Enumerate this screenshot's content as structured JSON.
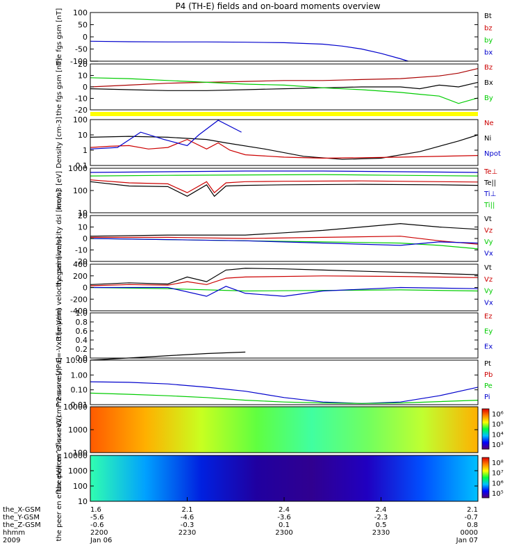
{
  "title": "P4 (TH-E) fields and on-board moments overview",
  "chart_data": [
    {
      "type": "line",
      "ylabel": "the fgs gsm [nT]",
      "ylim": [
        -100,
        100
      ],
      "yticks": [
        "100",
        "50",
        "0",
        "-50",
        "-100"
      ],
      "legend": [
        {
          "name": "Bt",
          "color": "#000000"
        },
        {
          "name": "bz",
          "color": "#cc0000"
        },
        {
          "name": "by",
          "color": "#00cc00"
        },
        {
          "name": "bx",
          "color": "#0000cc"
        }
      ],
      "series": [
        {
          "name": "bx",
          "color": "#0000cc",
          "x": [
            0,
            0.1,
            0.2,
            0.3,
            0.4,
            0.5,
            0.6,
            0.65,
            0.7,
            0.75,
            0.8,
            0.82
          ],
          "y": [
            -18,
            -20,
            -21,
            -21,
            -22,
            -24,
            -30,
            -38,
            -50,
            -68,
            -90,
            -100
          ]
        },
        {
          "name": "Bt",
          "color": "#000000",
          "x": [
            0,
            0.02
          ],
          "y": [
            -100,
            -100
          ]
        }
      ]
    },
    {
      "type": "line",
      "ylabel": "the fgs gsm [nT]",
      "ylim": [
        -25,
        25
      ],
      "yticks": [
        "20",
        "10",
        "0",
        "-10",
        "-20"
      ],
      "legend": [
        {
          "name": "Bz",
          "color": "#cc0000"
        },
        {
          "name": "Bx",
          "color": "#000000"
        },
        {
          "name": "By",
          "color": "#00cc00"
        }
      ],
      "series": [
        {
          "name": "Bz",
          "color": "#aa0000",
          "x": [
            0,
            0.1,
            0.2,
            0.3,
            0.4,
            0.5,
            0.6,
            0.7,
            0.8,
            0.9,
            0.95,
            1
          ],
          "y": [
            0,
            2,
            4,
            5,
            6,
            7,
            7,
            8,
            9,
            12,
            15,
            20
          ]
        },
        {
          "name": "Bx",
          "color": "#000000",
          "x": [
            0,
            0.1,
            0.2,
            0.3,
            0.4,
            0.5,
            0.6,
            0.7,
            0.8,
            0.85,
            0.9,
            0.95,
            1
          ],
          "y": [
            -2,
            -3,
            -4,
            -4,
            -3,
            -2,
            -1,
            0,
            0,
            -2,
            2,
            0,
            5
          ]
        },
        {
          "name": "By",
          "color": "#00cc00",
          "x": [
            0,
            0.1,
            0.2,
            0.3,
            0.4,
            0.5,
            0.6,
            0.7,
            0.8,
            0.85,
            0.9,
            0.95,
            1
          ],
          "y": [
            10,
            9,
            7,
            5,
            3,
            2,
            -1,
            -3,
            -6,
            -8,
            -10,
            -18,
            -12
          ]
        }
      ]
    },
    {
      "type": "line",
      "ylabel": "Density [cm-3]",
      "ylog": [
        0.1,
        100
      ],
      "yticks": [
        "100",
        "10",
        "1",
        "0.1"
      ],
      "legend": [
        {
          "name": "Ne",
          "color": "#cc0000"
        },
        {
          "name": "Ni",
          "color": "#000000"
        },
        {
          "name": "Npot",
          "color": "#0000cc"
        }
      ],
      "series": [
        {
          "name": "Ni",
          "color": "#000000",
          "x": [
            0,
            0.1,
            0.2,
            0.3,
            0.35,
            0.45,
            0.55,
            0.65,
            0.75,
            0.85,
            0.95,
            1
          ],
          "y": [
            7,
            8,
            7,
            5,
            3,
            1.2,
            0.4,
            0.25,
            0.3,
            0.8,
            4,
            10
          ]
        },
        {
          "name": "Ne",
          "color": "#cc0000",
          "x": [
            0,
            0.05,
            0.1,
            0.15,
            0.2,
            0.25,
            0.3,
            0.33,
            0.36,
            0.4,
            0.5,
            0.6,
            0.8,
            1
          ],
          "y": [
            1.5,
            1.8,
            2,
            1.2,
            1.5,
            5,
            1.2,
            3,
            1,
            0.5,
            0.35,
            0.3,
            0.35,
            0.45
          ]
        },
        {
          "name": "Npot",
          "color": "#0000cc",
          "x": [
            0,
            0.07,
            0.13,
            0.19,
            0.25,
            0.28,
            0.33,
            0.39
          ],
          "y": [
            1.2,
            1.5,
            15,
            5,
            2,
            10,
            90,
            15
          ]
        }
      ]
    },
    {
      "type": "line",
      "ylabel": "mom3 [eV]",
      "ylog": [
        10,
        1000
      ],
      "yticks": [
        "1000",
        "100",
        "10"
      ],
      "legend": [
        {
          "name": "Te⊥",
          "color": "#cc0000"
        },
        {
          "name": "Te||",
          "color": "#000000"
        },
        {
          "name": "Ti⊥",
          "color": "#0000cc"
        },
        {
          "name": "Ti||",
          "color": "#00cc00"
        }
      ],
      "series": [
        {
          "name": "Ti⊥",
          "color": "#0000cc",
          "x": [
            0,
            0.2,
            0.4,
            0.6,
            0.8,
            1
          ],
          "y": [
            650,
            700,
            750,
            750,
            700,
            650
          ]
        },
        {
          "name": "Ti||",
          "color": "#00cc00",
          "x": [
            0,
            0.2,
            0.4,
            0.6,
            0.8,
            1
          ],
          "y": [
            450,
            480,
            500,
            520,
            480,
            450
          ]
        },
        {
          "name": "Te⊥",
          "color": "#cc0000",
          "x": [
            0,
            0.1,
            0.2,
            0.25,
            0.3,
            0.32,
            0.35,
            0.4,
            0.5,
            0.7,
            0.9,
            1
          ],
          "y": [
            300,
            220,
            200,
            80,
            250,
            80,
            220,
            250,
            260,
            270,
            250,
            240
          ]
        },
        {
          "name": "Te||",
          "color": "#000000",
          "x": [
            0,
            0.1,
            0.2,
            0.25,
            0.3,
            0.32,
            0.35,
            0.4,
            0.5,
            0.7,
            0.9,
            1
          ],
          "y": [
            250,
            160,
            150,
            55,
            180,
            55,
            160,
            170,
            180,
            190,
            180,
            170
          ]
        }
      ]
    },
    {
      "type": "line",
      "ylabel": "the peim velocity dsl [km/s]",
      "ylim": [
        -20,
        20
      ],
      "yticks": [
        "20",
        "10",
        "0",
        "-10",
        "-20"
      ],
      "legend": [
        {
          "name": "Vt",
          "color": "#000000"
        },
        {
          "name": "Vz",
          "color": "#cc0000"
        },
        {
          "name": "Vy",
          "color": "#00cc00"
        },
        {
          "name": "Vx",
          "color": "#0000cc"
        }
      ],
      "series": [
        {
          "name": "Vt",
          "color": "#000000",
          "x": [
            0,
            0.2,
            0.4,
            0.5,
            0.6,
            0.7,
            0.8,
            0.9,
            1
          ],
          "y": [
            2,
            3,
            3,
            5,
            7,
            10,
            13,
            10,
            8
          ]
        },
        {
          "name": "Vz",
          "color": "#cc0000",
          "x": [
            0,
            0.2,
            0.4,
            0.6,
            0.8,
            0.9,
            1
          ],
          "y": [
            1,
            1,
            0,
            1,
            2,
            -2,
            -5
          ]
        },
        {
          "name": "Vy",
          "color": "#00cc00",
          "x": [
            0,
            0.2,
            0.4,
            0.6,
            0.8,
            0.9,
            1
          ],
          "y": [
            0,
            -1,
            -2,
            -3,
            -4,
            -6,
            -9
          ]
        },
        {
          "name": "Vx",
          "color": "#0000cc",
          "x": [
            0,
            0.2,
            0.4,
            0.6,
            0.8,
            0.9,
            1
          ],
          "y": [
            0,
            -1,
            -2,
            -4,
            -6,
            -3,
            -4
          ]
        }
      ]
    },
    {
      "type": "line",
      "ylabel": "the peim velocity gsm [km/s]",
      "ylim": [
        -400,
        400
      ],
      "yticks": [
        "400",
        "200",
        "0",
        "-200",
        "-400"
      ],
      "legend": [
        {
          "name": "Vt",
          "color": "#000000"
        },
        {
          "name": "Vz",
          "color": "#cc0000"
        },
        {
          "name": "Vy",
          "color": "#00cc00"
        },
        {
          "name": "Vx",
          "color": "#0000cc"
        }
      ],
      "series": [
        {
          "name": "Vt",
          "color": "#000000",
          "x": [
            0,
            0.1,
            0.2,
            0.25,
            0.3,
            0.35,
            0.4,
            0.5,
            0.6,
            0.8,
            1
          ],
          "y": [
            50,
            80,
            60,
            180,
            100,
            300,
            330,
            320,
            300,
            260,
            220
          ]
        },
        {
          "name": "Vz",
          "color": "#cc0000",
          "x": [
            0,
            0.1,
            0.2,
            0.25,
            0.3,
            0.35,
            0.4,
            0.6,
            0.8,
            1
          ],
          "y": [
            30,
            50,
            40,
            100,
            50,
            160,
            180,
            200,
            190,
            170
          ]
        },
        {
          "name": "Vy",
          "color": "#00cc00",
          "x": [
            0,
            0.2,
            0.4,
            0.6,
            0.8,
            1
          ],
          "y": [
            0,
            -20,
            -60,
            -50,
            -40,
            -60
          ]
        },
        {
          "name": "Vx",
          "color": "#0000cc",
          "x": [
            0,
            0.2,
            0.3,
            0.35,
            0.4,
            0.5,
            0.6,
            0.8,
            1
          ],
          "y": [
            0,
            0,
            -150,
            20,
            -100,
            -150,
            -60,
            0,
            -20
          ]
        }
      ]
    },
    {
      "type": "line",
      "ylabel": "E=-VxB [mV/m]",
      "ylim": [
        0,
        1
      ],
      "yticks": [
        "1.0",
        "0.8",
        "0.6",
        "0.4",
        "0.2",
        "0.0"
      ],
      "legend": [
        {
          "name": "Ez",
          "color": "#cc0000"
        },
        {
          "name": "Ey",
          "color": "#00cc00"
        },
        {
          "name": "Ex",
          "color": "#0000cc"
        }
      ],
      "series": []
    },
    {
      "type": "line",
      "ylabel": "Pressure [nPa]",
      "ylog": [
        0.01,
        10
      ],
      "yticks": [
        "10.00",
        "1.00",
        "0.10",
        "0.01"
      ],
      "legend": [
        {
          "name": "Pt",
          "color": "#000000"
        },
        {
          "name": "Pb",
          "color": "#cc0000"
        },
        {
          "name": "Pe",
          "color": "#00cc00"
        },
        {
          "name": "Pi",
          "color": "#0000cc"
        }
      ],
      "series": [
        {
          "name": "Pt",
          "color": "#000000",
          "x": [
            0,
            0.1,
            0.2,
            0.3,
            0.4
          ],
          "y": [
            10,
            14,
            20,
            28,
            35
          ]
        },
        {
          "name": "Pi",
          "color": "#0000cc",
          "x": [
            0,
            0.1,
            0.2,
            0.3,
            0.4,
            0.5,
            0.6,
            0.7,
            0.8,
            0.9,
            1
          ],
          "y": [
            0.35,
            0.32,
            0.25,
            0.15,
            0.08,
            0.03,
            0.015,
            0.012,
            0.015,
            0.04,
            0.15
          ]
        },
        {
          "name": "Pe",
          "color": "#00cc00",
          "x": [
            0,
            0.1,
            0.2,
            0.3,
            0.4,
            0.5,
            0.6,
            0.7,
            0.8,
            0.9,
            1
          ],
          "y": [
            0.06,
            0.05,
            0.04,
            0.03,
            0.02,
            0.015,
            0.013,
            0.012,
            0.013,
            0.016,
            0.02
          ]
        }
      ]
    },
    {
      "type": "heatmap",
      "ylabel": "the peir en eflux eV/(cm^2-s-sr-eV)",
      "ylog": [
        10,
        20000
      ],
      "yticks": [
        "10000",
        "1000",
        "100"
      ],
      "colorbar": {
        "colors": [
          "#5a0070",
          "#0000ff",
          "#00c0ff",
          "#00ff40",
          "#ffff00",
          "#ff8000",
          "#e00000"
        ],
        "ticks": [
          "10⁶",
          "10⁵",
          "10⁴",
          "10³"
        ]
      }
    },
    {
      "type": "heatmap",
      "ylabel": "the peer en eflux eV/(cm^2-s-sr-eV)",
      "ylog": [
        8,
        20000
      ],
      "yticks": [
        "10000",
        "1000",
        "100",
        "10"
      ],
      "colorbar": {
        "colors": [
          "#5a0070",
          "#0000ff",
          "#00c0ff",
          "#00ff40",
          "#ffff00",
          "#ff8000",
          "#e00000"
        ],
        "ticks": [
          "10⁸",
          "10⁷",
          "10⁶",
          "10⁵"
        ]
      }
    }
  ],
  "xaxis": {
    "row_labels": [
      "the_X-GSM",
      "the_Y-GSM",
      "the_Z-GSM",
      "hhmm",
      "2009"
    ],
    "columns": [
      [
        "1.6",
        "-5.6",
        "-0.6",
        "2200",
        "Jan 06"
      ],
      [
        "2.1",
        "-4.6",
        "-0.3",
        "2230",
        ""
      ],
      [
        "2.4",
        "-3.6",
        "0.1",
        "2300",
        ""
      ],
      [
        "2.4",
        "-2.3",
        "0.5",
        "2330",
        ""
      ],
      [
        "2.1",
        "-0.7",
        "0.8",
        "0000",
        "Jan 07"
      ]
    ]
  },
  "colors": {
    "yellow_band": "#ffff00"
  }
}
